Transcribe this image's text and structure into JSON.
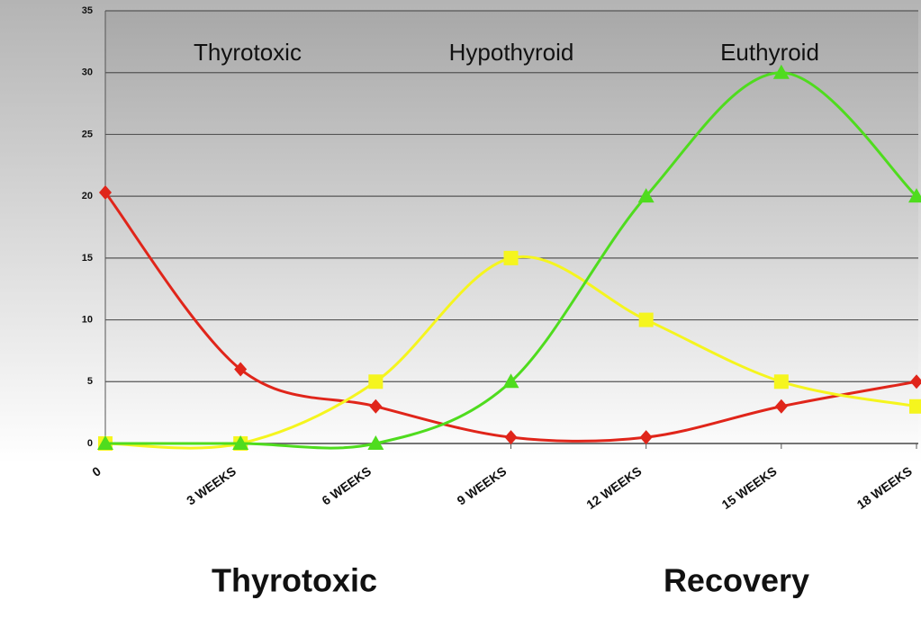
{
  "chart_data": {
    "type": "line",
    "categories": [
      "0",
      "3 WEEKS",
      "6 WEEKS",
      "9 WEEKS",
      "12 WEEKS",
      "15 WEEKS",
      "18 WEEKS"
    ],
    "series": [
      {
        "name": "Thyrotoxic",
        "color": "#e0251a",
        "marker": "diamond",
        "values": [
          20.3,
          6,
          3,
          0.5,
          0.5,
          3,
          5
        ]
      },
      {
        "name": "Hypothyroid",
        "color": "#f5f51e",
        "marker": "square",
        "values": [
          0,
          0,
          5,
          15,
          10,
          5,
          3
        ]
      },
      {
        "name": "Euthyroid",
        "color": "#4fdc1e",
        "marker": "triangle",
        "values": [
          0,
          0,
          0,
          5,
          20,
          30,
          20
        ]
      }
    ],
    "ylim": [
      0,
      35
    ],
    "yticks": [
      0,
      5,
      10,
      15,
      20,
      25,
      30,
      35
    ],
    "grid": true,
    "annotations": [
      "Thyrotoxic",
      "Recovery"
    ]
  }
}
